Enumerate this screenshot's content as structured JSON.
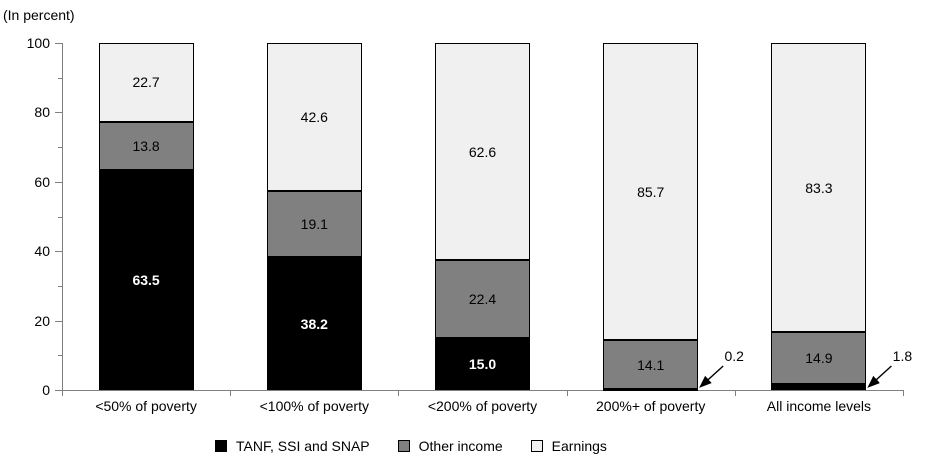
{
  "chart": {
    "y_axis_title": "(In percent)"
  },
  "chart_data": {
    "type": "bar",
    "stacked": true,
    "title": "",
    "ylabel": "(In percent)",
    "xlabel": "",
    "ylim": [
      0,
      100
    ],
    "yticks": [
      0,
      20,
      40,
      60,
      80,
      100
    ],
    "minor_yticks": [
      10,
      30,
      50,
      70,
      90
    ],
    "grid": false,
    "legend_position": "bottom",
    "categories": [
      "<50% of poverty",
      "<100% of poverty",
      "<200% of poverty",
      "200%+ of poverty",
      "All income levels"
    ],
    "series": [
      {
        "name": "TANF, SSI and SNAP",
        "color": "#000000",
        "label_color": "#ffffff",
        "label_bold": true,
        "values": [
          63.5,
          38.2,
          15.0,
          0.2,
          1.8
        ]
      },
      {
        "name": "Other income",
        "color": "#808080",
        "label_color": "#000000",
        "label_bold": false,
        "values": [
          13.8,
          19.1,
          22.4,
          14.1,
          14.9
        ]
      },
      {
        "name": "Earnings",
        "color": "#f0f0f0",
        "label_color": "#000000",
        "label_bold": false,
        "values": [
          22.7,
          42.6,
          62.6,
          85.7,
          83.3
        ]
      }
    ],
    "annotations": [
      {
        "text": "0.2",
        "category_index": 3,
        "series_index": 0
      },
      {
        "text": "1.8",
        "category_index": 4,
        "series_index": 0
      }
    ],
    "colors": {
      "axis": "#808080",
      "bar_border": "#000000",
      "background": "#ffffff"
    }
  }
}
